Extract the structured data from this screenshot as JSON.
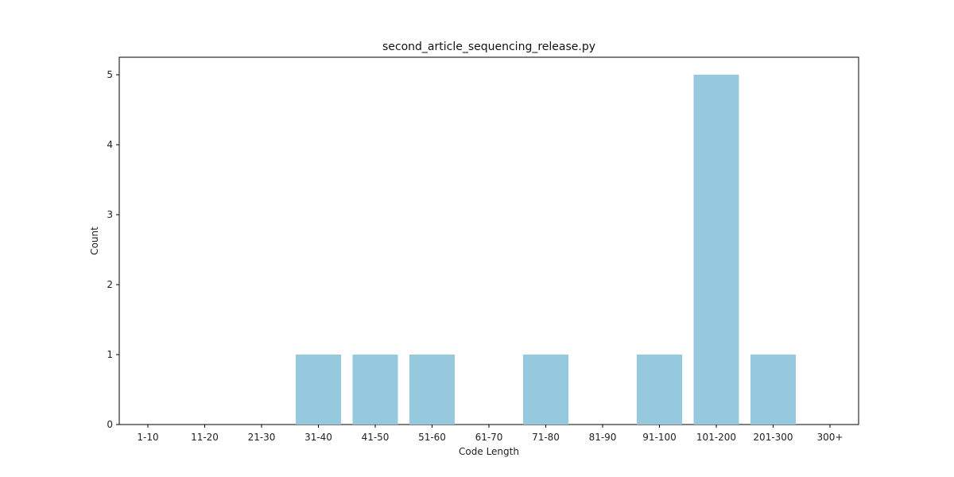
{
  "chart_data": {
    "type": "bar",
    "title": "second_article_sequencing_release.py",
    "xlabel": "Code Length",
    "ylabel": "Count",
    "categories": [
      "1-10",
      "11-20",
      "21-30",
      "31-40",
      "41-50",
      "51-60",
      "61-70",
      "71-80",
      "81-90",
      "91-100",
      "101-200",
      "201-300",
      "300+"
    ],
    "values": [
      0,
      0,
      0,
      1,
      1,
      1,
      0,
      1,
      0,
      1,
      5,
      1,
      0
    ],
    "yticks": [
      0,
      1,
      2,
      3,
      4,
      5
    ],
    "ylim": [
      0,
      5.25
    ],
    "grid": false,
    "bar_color": "#96c9dd"
  }
}
